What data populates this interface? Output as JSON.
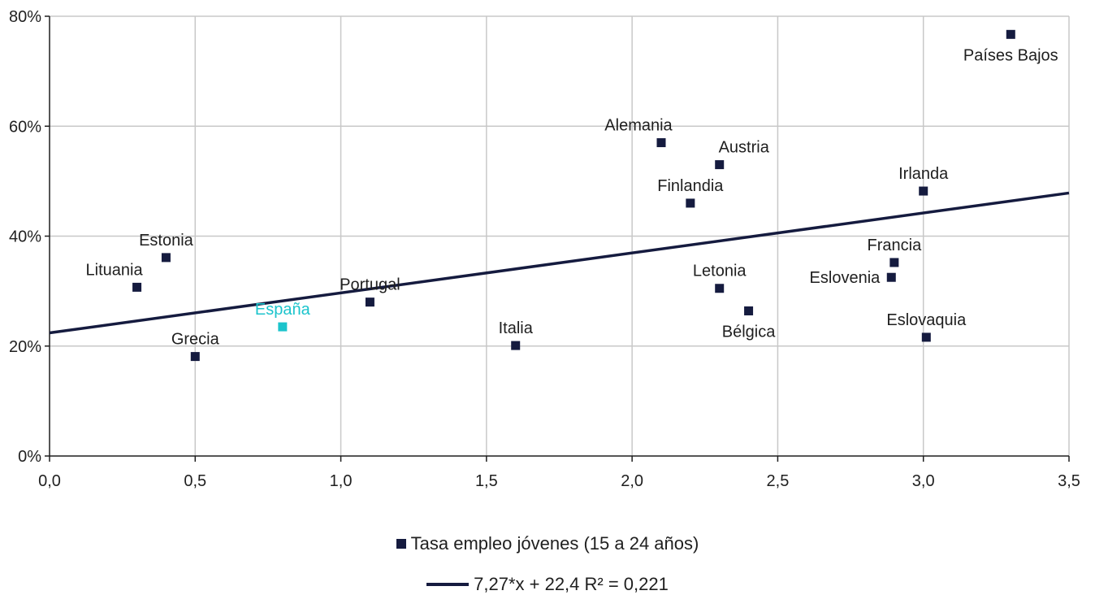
{
  "chart_data": {
    "type": "scatter",
    "xlim": [
      0,
      3.5
    ],
    "ylim": [
      0,
      80
    ],
    "x_ticks": [
      {
        "value": 0,
        "label": "0,0"
      },
      {
        "value": 0.5,
        "label": "0,5"
      },
      {
        "value": 1.0,
        "label": "1,0"
      },
      {
        "value": 1.5,
        "label": "1,5"
      },
      {
        "value": 2.0,
        "label": "2,0"
      },
      {
        "value": 2.5,
        "label": "2,5"
      },
      {
        "value": 3.0,
        "label": "3,0"
      },
      {
        "value": 3.5,
        "label": "3,5"
      }
    ],
    "y_ticks": [
      {
        "value": 0,
        "label": "0%"
      },
      {
        "value": 20,
        "label": "20%"
      },
      {
        "value": 40,
        "label": "40%"
      },
      {
        "value": 60,
        "label": "60%"
      },
      {
        "value": 80,
        "label": "80%"
      }
    ],
    "grid": true,
    "series": [
      {
        "name": "Tasa empleo jóvenes (15 a 24 años)",
        "color": "#151b3f",
        "points": [
          {
            "label": "Lituania",
            "x": 0.3,
            "y": 30.7,
            "label_pos": "above-left"
          },
          {
            "label": "Estonia",
            "x": 0.4,
            "y": 36.1,
            "label_pos": "above"
          },
          {
            "label": "Grecia",
            "x": 0.5,
            "y": 18.1,
            "label_pos": "above"
          },
          {
            "label": "España",
            "x": 0.8,
            "y": 23.5,
            "label_pos": "above",
            "color": "#1cc4cc"
          },
          {
            "label": "Portugal",
            "x": 1.1,
            "y": 28.0,
            "label_pos": "above"
          },
          {
            "label": "Italia",
            "x": 1.6,
            "y": 20.1,
            "label_pos": "above"
          },
          {
            "label": "Alemania",
            "x": 2.1,
            "y": 57.0,
            "label_pos": "above-left"
          },
          {
            "label": "Finlandia",
            "x": 2.2,
            "y": 46.0,
            "label_pos": "above"
          },
          {
            "label": "Letonia",
            "x": 2.3,
            "y": 30.5,
            "label_pos": "above"
          },
          {
            "label": "Austria",
            "x": 2.3,
            "y": 53.0,
            "label_pos": "above-right"
          },
          {
            "label": "Bélgica",
            "x": 2.4,
            "y": 26.4,
            "label_pos": "below"
          },
          {
            "label": "Eslovenia",
            "x": 2.89,
            "y": 32.5,
            "label_pos": "left"
          },
          {
            "label": "Francia",
            "x": 2.9,
            "y": 35.2,
            "label_pos": "above"
          },
          {
            "label": "Irlanda",
            "x": 3.0,
            "y": 48.2,
            "label_pos": "above"
          },
          {
            "label": "Eslovaquia",
            "x": 3.01,
            "y": 21.6,
            "label_pos": "above"
          },
          {
            "label": "Países Bajos",
            "x": 3.3,
            "y": 76.7,
            "label_pos": "below"
          }
        ]
      }
    ],
    "trendline": {
      "label": "7,27*x + 22,4 R² = 0,221",
      "slope": 7.27,
      "intercept": 22.4,
      "r2": 0.221,
      "color": "#151b3f"
    },
    "legend_position": "bottom-center"
  }
}
